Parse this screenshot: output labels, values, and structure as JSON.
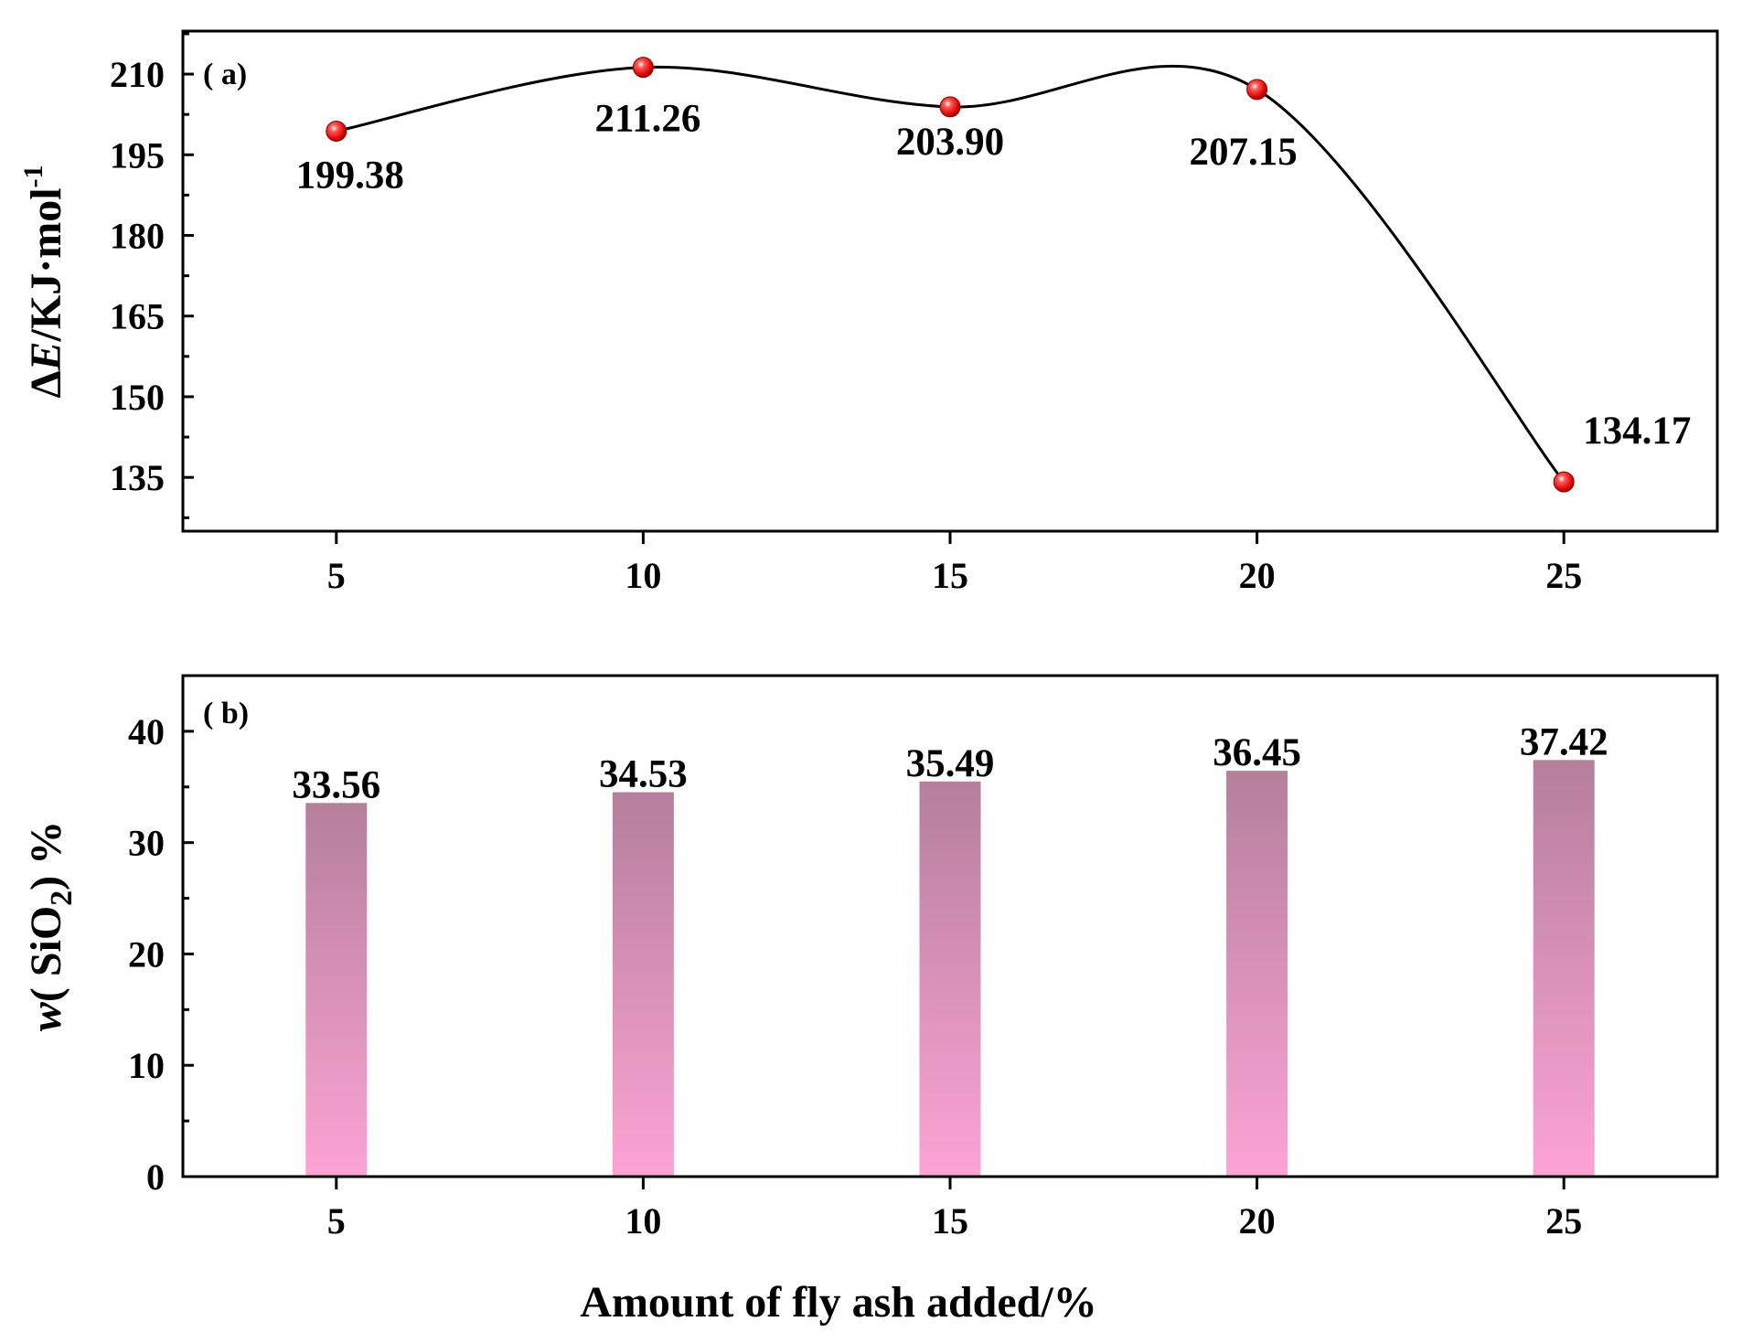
{
  "chart_data": [
    {
      "type": "line",
      "panel_label": "( a)",
      "x": [
        5,
        10,
        15,
        20,
        25
      ],
      "values": [
        199.38,
        211.26,
        203.9,
        207.15,
        134.17
      ],
      "data_labels": [
        "199.38",
        "211.26",
        "203.90",
        "207.15",
        "134.17"
      ],
      "xlabel": "",
      "ylabel": "ΔE/KJ·mol-1",
      "ylabel_parts": {
        "delta": "Δ",
        "var": "E",
        "unit": "/KJ·mol",
        "sup": "-1"
      },
      "xlim": [
        2.5,
        27.5
      ],
      "ylim": [
        125,
        218
      ],
      "x_ticks": [
        5,
        10,
        15,
        20,
        25
      ],
      "y_ticks": [
        135,
        150,
        165,
        180,
        195,
        210
      ],
      "grid": false,
      "line_color": "#000000",
      "marker_color": "#e00000"
    },
    {
      "type": "bar",
      "panel_label": "( b)",
      "x": [
        5,
        10,
        15,
        20,
        25
      ],
      "values": [
        33.56,
        34.53,
        35.49,
        36.45,
        37.42
      ],
      "data_labels": [
        "33.56",
        "34.53",
        "35.49",
        "36.45",
        "37.42"
      ],
      "xlabel": "Amount of fly ash added/%",
      "ylabel": "w( SiO2) %",
      "ylabel_parts": {
        "var": "w",
        "open": "( SiO",
        "sub": "2",
        "close": ") %"
      },
      "xlim": [
        2.5,
        27.5
      ],
      "ylim": [
        0,
        45
      ],
      "x_ticks": [
        5,
        10,
        15,
        20,
        25
      ],
      "y_ticks": [
        0,
        10,
        20,
        30,
        40
      ],
      "grid": false,
      "bar_color_top": "#b57f9c",
      "bar_color_bottom": "#fda3d5"
    }
  ]
}
